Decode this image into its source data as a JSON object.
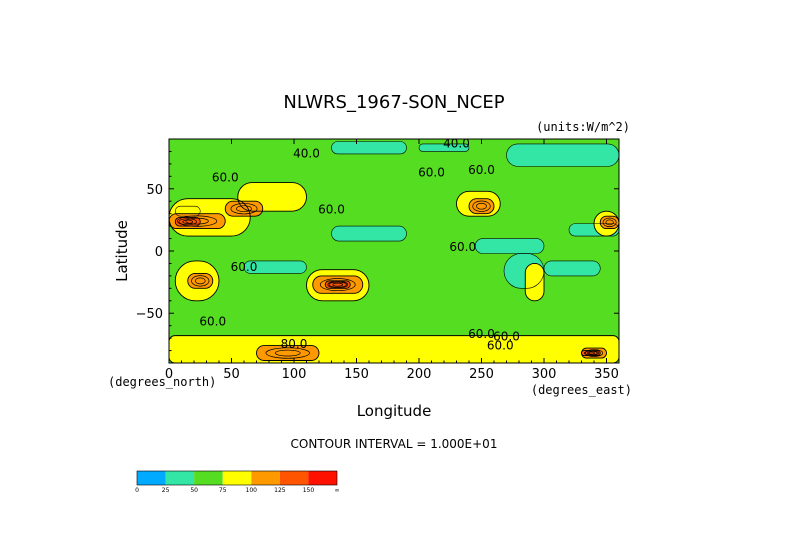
{
  "chart_data": {
    "type": "heatmap",
    "title": "NLWRS_1967-SON_NCEP",
    "units": "(units:W/m^2)",
    "xlabel": "Longitude",
    "ylabel": "Latitude",
    "x_unit_label": "(degrees_east)",
    "y_unit_label": "(degrees_north)",
    "xlim": [
      0,
      360
    ],
    "ylim": [
      -90,
      90
    ],
    "x_ticks": [
      0,
      50,
      100,
      150,
      200,
      250,
      300,
      350
    ],
    "y_ticks": [
      50,
      0,
      -50
    ],
    "contour_interval": "CONTOUR INTERVAL = 1.000E+01",
    "contour_labels": [
      {
        "text": "40.0",
        "lon": 110,
        "lat": 75
      },
      {
        "text": "40.0",
        "lon": 230,
        "lat": 83
      },
      {
        "text": "60.0",
        "lon": 45,
        "lat": 56
      },
      {
        "text": "60.0",
        "lon": 210,
        "lat": 60
      },
      {
        "text": "60.0",
        "lon": 250,
        "lat": 62
      },
      {
        "text": "60.0",
        "lon": 130,
        "lat": 30
      },
      {
        "text": "60.0",
        "lon": 235,
        "lat": 0
      },
      {
        "text": "60.0",
        "lon": 60,
        "lat": -16
      },
      {
        "text": "60.0",
        "lon": 35,
        "lat": -60
      },
      {
        "text": "60.0",
        "lon": 250,
        "lat": -70
      },
      {
        "text": "60.0",
        "lon": 270,
        "lat": -72
      },
      {
        "text": "60.0",
        "lon": 265,
        "lat": -79
      },
      {
        "text": "80.0",
        "lon": 100,
        "lat": -78
      }
    ],
    "legend": {
      "levels": [
        "0",
        "25",
        "50",
        "75",
        "100",
        "125",
        "150",
        "∞"
      ],
      "colors": [
        "#00aaff",
        "#33e6a6",
        "#55dd22",
        "#ffff00",
        "#ff9900",
        "#ff5500",
        "#ff1100"
      ]
    },
    "regions": [
      {
        "level": 2,
        "lon": [
          0,
          360
        ],
        "lat": [
          -90,
          90
        ]
      },
      {
        "level": 1,
        "lon": [
          270,
          360
        ],
        "lat": [
          68,
          86
        ]
      },
      {
        "level": 1,
        "lon": [
          130,
          190
        ],
        "lat": [
          78,
          88
        ]
      },
      {
        "level": 1,
        "lon": [
          200,
          240
        ],
        "lat": [
          80,
          86
        ]
      },
      {
        "level": 1,
        "lon": [
          130,
          190
        ],
        "lat": [
          8,
          20
        ]
      },
      {
        "level": 1,
        "lon": [
          245,
          300
        ],
        "lat": [
          -2,
          10
        ]
      },
      {
        "level": 1,
        "lon": [
          268,
          300
        ],
        "lat": [
          -30,
          -2
        ]
      },
      {
        "level": 1,
        "lon": [
          300,
          345
        ],
        "lat": [
          -20,
          -8
        ]
      },
      {
        "level": 1,
        "lon": [
          60,
          110
        ],
        "lat": [
          -18,
          -8
        ]
      },
      {
        "level": 1,
        "lon": [
          320,
          360
        ],
        "lat": [
          12,
          22
        ]
      },
      {
        "level": 1,
        "lon": [
          5,
          25
        ],
        "lat": [
          28,
          36
        ]
      },
      {
        "level": 3,
        "lon": [
          0,
          65
        ],
        "lat": [
          12,
          42
        ]
      },
      {
        "level": 3,
        "lon": [
          55,
          110
        ],
        "lat": [
          32,
          55
        ]
      },
      {
        "level": 3,
        "lon": [
          230,
          265
        ],
        "lat": [
          28,
          48
        ]
      },
      {
        "level": 3,
        "lon": [
          5,
          40
        ],
        "lat": [
          -40,
          -8
        ]
      },
      {
        "level": 3,
        "lon": [
          110,
          160
        ],
        "lat": [
          -40,
          -15
        ]
      },
      {
        "level": 3,
        "lon": [
          340,
          360
        ],
        "lat": [
          12,
          32
        ]
      },
      {
        "level": 3,
        "lon": [
          285,
          300
        ],
        "lat": [
          -40,
          -10
        ]
      },
      {
        "level": 3,
        "lon": [
          0,
          360
        ],
        "lat": [
          -90,
          -68
        ]
      },
      {
        "level": 4,
        "lon": [
          0,
          45
        ],
        "lat": [
          18,
          30
        ]
      },
      {
        "level": 4,
        "lon": [
          45,
          75
        ],
        "lat": [
          28,
          40
        ]
      },
      {
        "level": 4,
        "lon": [
          240,
          260
        ],
        "lat": [
          30,
          42
        ]
      },
      {
        "level": 4,
        "lon": [
          115,
          155
        ],
        "lat": [
          -34,
          -20
        ]
      },
      {
        "level": 4,
        "lon": [
          15,
          35
        ],
        "lat": [
          -30,
          -18
        ]
      },
      {
        "level": 4,
        "lon": [
          345,
          360
        ],
        "lat": [
          18,
          28
        ]
      },
      {
        "level": 4,
        "lon": [
          70,
          120
        ],
        "lat": [
          -88,
          -76
        ]
      },
      {
        "level": 4,
        "lon": [
          330,
          350
        ],
        "lat": [
          -86,
          -78
        ]
      },
      {
        "level": 5,
        "lon": [
          125,
          145
        ],
        "lat": [
          -30,
          -24
        ]
      },
      {
        "level": 5,
        "lon": [
          5,
          25
        ],
        "lat": [
          20,
          27
        ]
      },
      {
        "level": 5,
        "lon": [
          330,
          345
        ],
        "lat": [
          -84,
          -80
        ]
      }
    ]
  }
}
